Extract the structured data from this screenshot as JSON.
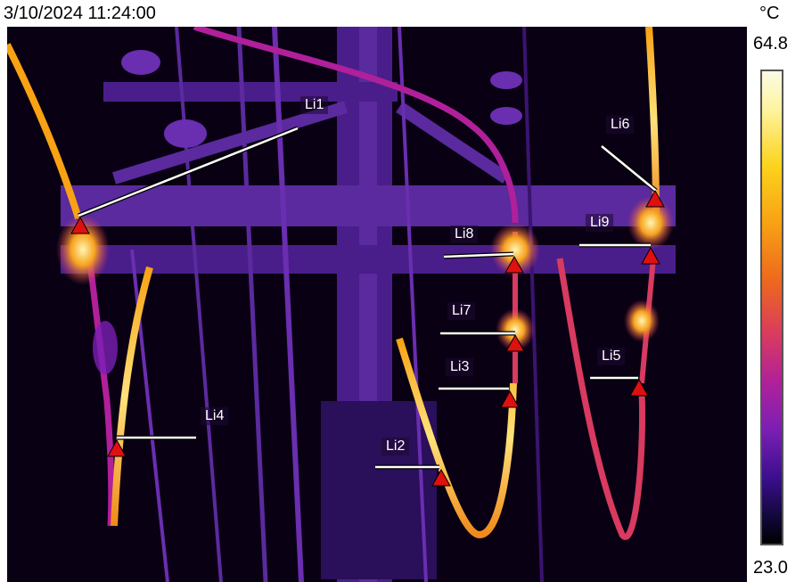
{
  "header": {
    "timestamp": "3/10/2024 11:24:00",
    "unit": "°C"
  },
  "scale": {
    "max": "64.8",
    "min": "23.0"
  },
  "palette": "iron",
  "measurement_lines": [
    {
      "label": "Li1"
    },
    {
      "label": "Li2"
    },
    {
      "label": "Li3"
    },
    {
      "label": "Li4"
    },
    {
      "label": "Li5"
    },
    {
      "label": "Li6"
    },
    {
      "label": "Li7"
    },
    {
      "label": "Li8"
    },
    {
      "label": "Li9"
    }
  ],
  "colors": {
    "marker": "#e01010",
    "line": "#ffffff",
    "hot": "#ffd24a"
  }
}
